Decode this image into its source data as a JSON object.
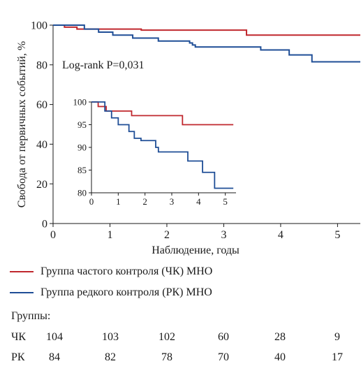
{
  "chart_data": [
    {
      "type": "line",
      "step": true,
      "ylabel": "Свобода от первичных событий, %",
      "xlabel": "Наблюдение, годы",
      "xlim": [
        0,
        5.4
      ],
      "ylim": [
        0,
        100
      ],
      "xticks": [
        0,
        1,
        2,
        3,
        4,
        5
      ],
      "yticks": [
        0,
        20,
        40,
        60,
        80,
        100
      ],
      "annotation": "Log-rank P=0,031",
      "series": [
        {
          "name": "Группа частого контроля (ЧК) МНО",
          "color": "#c0272d",
          "x": [
            0,
            0.2,
            0.42,
            1.55,
            3.4,
            5.4
          ],
          "y": [
            100,
            99,
            98,
            97.5,
            95,
            95
          ]
        },
        {
          "name": "Группа редкого контроля (РК) МНО",
          "color": "#1f4e96",
          "x": [
            0,
            0.55,
            0.8,
            1.05,
            1.4,
            1.85,
            2.4,
            2.45,
            2.5,
            3.65,
            4.15,
            4.55,
            5.4
          ],
          "y": [
            100,
            98,
            96.5,
            95,
            93.5,
            92,
            91,
            90,
            89,
            87.5,
            85,
            81.5,
            81.5
          ]
        }
      ]
    },
    {
      "type": "line",
      "step": true,
      "inset": true,
      "xlim": [
        0,
        5.4
      ],
      "ylim": [
        80,
        100
      ],
      "xticks": [
        0,
        1,
        2,
        3,
        4,
        5
      ],
      "yticks": [
        80,
        85,
        90,
        95,
        100
      ],
      "series": [
        {
          "color": "#c0272d",
          "x": [
            0,
            0.25,
            0.55,
            1.5,
            3.4,
            5.3
          ],
          "y": [
            100,
            99,
            98,
            97,
            95,
            95
          ]
        },
        {
          "color": "#1f4e96",
          "x": [
            0,
            0.5,
            0.75,
            1.0,
            1.4,
            1.6,
            1.85,
            2.4,
            2.5,
            3.6,
            4.15,
            4.6,
            5.3
          ],
          "y": [
            100,
            98,
            96.5,
            95,
            93.5,
            92,
            91.5,
            90,
            89,
            87,
            84.5,
            81,
            81
          ]
        }
      ]
    }
  ],
  "risk_table": {
    "title": "Группы:",
    "rows": [
      {
        "label": "ЧК",
        "values": [
          "104",
          "103",
          "102",
          "60",
          "28",
          "9"
        ]
      },
      {
        "label": "РК",
        "values": [
          "84",
          "82",
          "78",
          "70",
          "40",
          "17"
        ]
      }
    ]
  }
}
